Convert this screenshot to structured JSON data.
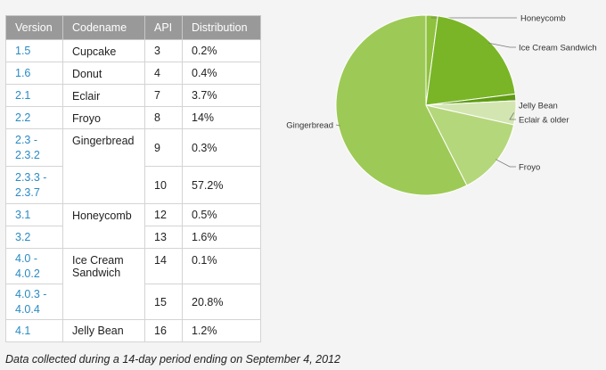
{
  "table": {
    "headers": [
      "Version",
      "Codename",
      "API",
      "Distribution"
    ],
    "rows": [
      {
        "version": "1.5",
        "codename": "Cupcake",
        "api": "3",
        "distribution": "0.2%"
      },
      {
        "version": "1.6",
        "codename": "Donut",
        "api": "4",
        "distribution": "0.4%"
      },
      {
        "version": "2.1",
        "codename": "Eclair",
        "api": "7",
        "distribution": "3.7%"
      },
      {
        "version": "2.2",
        "codename": "Froyo",
        "api": "8",
        "distribution": "14%"
      },
      {
        "version": "2.3 -\n2.3.2",
        "codename": "Gingerbread",
        "api": "9",
        "distribution": "0.3%"
      },
      {
        "version": "2.3.3 -\n2.3.7",
        "codename": "",
        "api": "10",
        "distribution": "57.2%"
      },
      {
        "version": "3.1",
        "codename": "Honeycomb",
        "api": "12",
        "distribution": "0.5%"
      },
      {
        "version": "3.2",
        "codename": "",
        "api": "13",
        "distribution": "1.6%"
      },
      {
        "version": "4.0 -\n4.0.2",
        "codename": "Ice Cream\nSandwich",
        "api": "14",
        "distribution": "0.1%"
      },
      {
        "version": "4.0.3 -\n4.0.4",
        "codename": "",
        "api": "15",
        "distribution": "20.8%"
      },
      {
        "version": "4.1",
        "codename": "Jelly Bean",
        "api": "16",
        "distribution": "1.2%"
      }
    ]
  },
  "footnote": "Data collected during a 14-day period ending on September 4, 2012",
  "chart_data": {
    "type": "pie",
    "title": "",
    "slices": [
      {
        "label": "Eclair & older",
        "value": 4.3,
        "color": "#d3e6b2"
      },
      {
        "label": "Froyo",
        "value": 14.0,
        "color": "#b5d77b"
      },
      {
        "label": "Gingerbread",
        "value": 57.5,
        "color": "#9dca56"
      },
      {
        "label": "Honeycomb",
        "value": 2.1,
        "color": "#8ec13d"
      },
      {
        "label": "Ice Cream Sandwich",
        "value": 20.9,
        "color": "#7ab528"
      },
      {
        "label": "Jelly Bean",
        "value": 1.2,
        "color": "#5f9c13"
      }
    ],
    "legend": "callout labels beside slices"
  }
}
